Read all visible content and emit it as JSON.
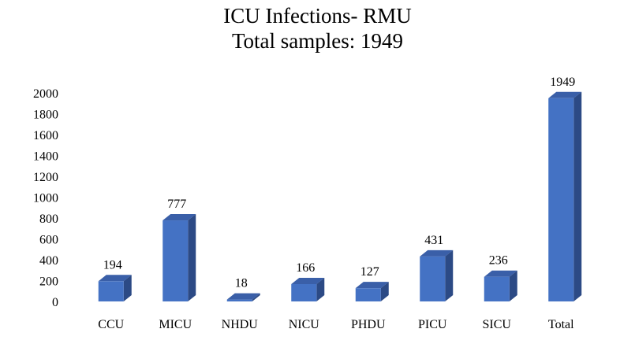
{
  "chart_data": {
    "type": "bar",
    "title": "ICU Infections- RMU",
    "subtitle": "Total samples: 1949",
    "xlabel": "",
    "ylabel": "",
    "categories": [
      "CCU",
      "MICU",
      "NHDU",
      "NICU",
      "PHDU",
      "PICU",
      "SICU",
      "Total"
    ],
    "values": [
      194,
      777,
      18,
      166,
      127,
      431,
      236,
      1949
    ],
    "data_labels": [
      "194",
      "777",
      "18",
      "166",
      "127",
      "431",
      "236",
      "1949"
    ],
    "ylim": [
      0,
      2000
    ],
    "yticks": [
      0,
      200,
      400,
      600,
      800,
      1000,
      1200,
      1400,
      1600,
      1800,
      2000
    ],
    "grid": false,
    "legend": "none",
    "style": "3d-column",
    "colors": {
      "front": "#4472C4",
      "top": "#3A5FA8",
      "side": "#2C4A85"
    }
  }
}
